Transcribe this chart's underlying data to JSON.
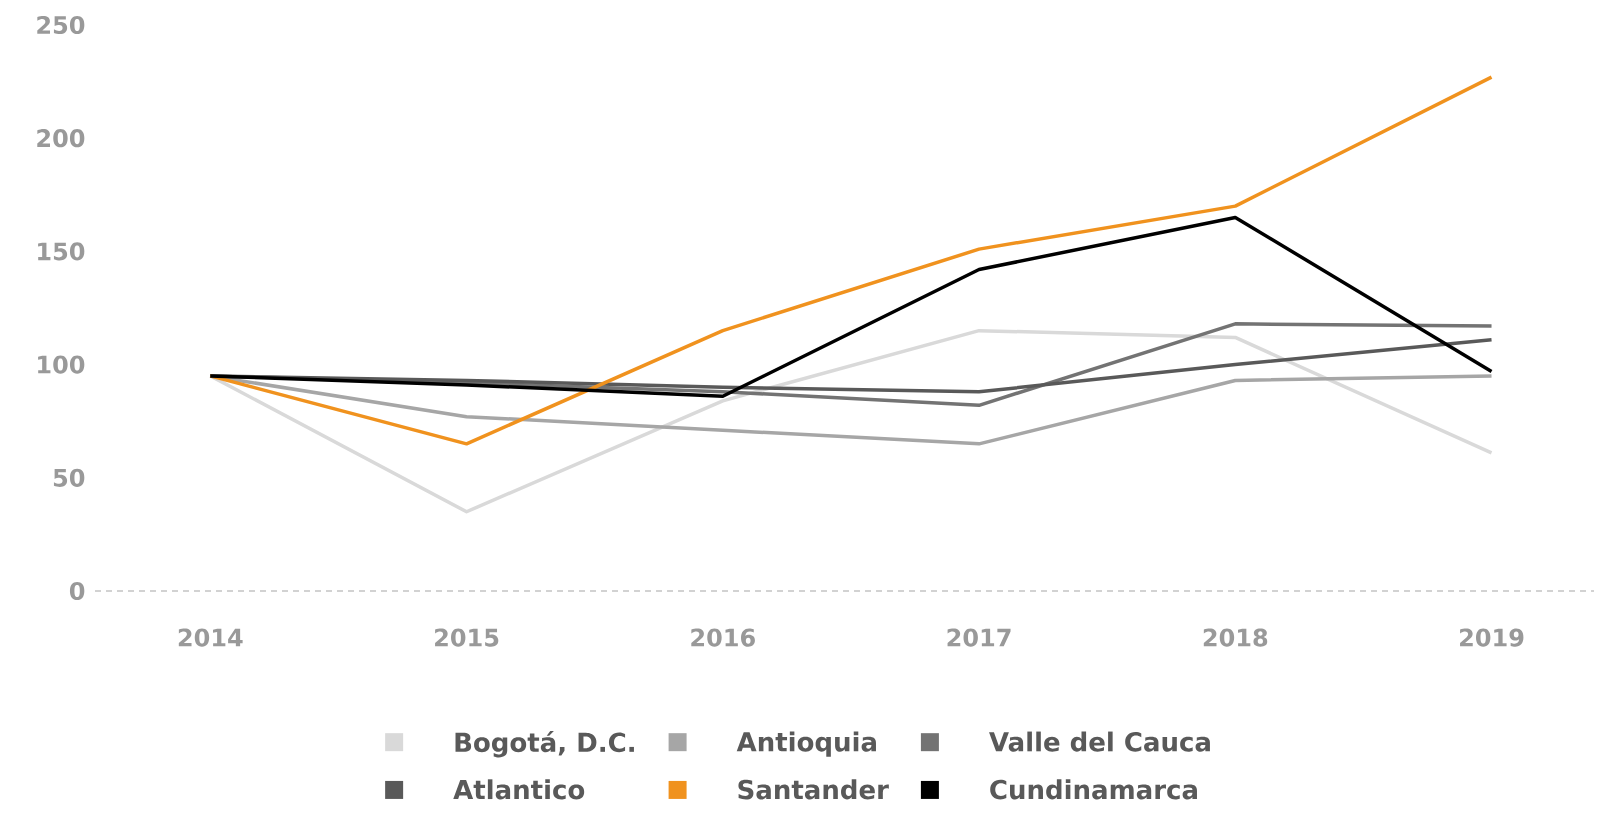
{
  "chart_data": {
    "type": "line",
    "categories": [
      "2014",
      "2015",
      "2016",
      "2017",
      "2018",
      "2019"
    ],
    "series": [
      {
        "name": "Bogotá, D.C.",
        "color": "#d9d9d9",
        "values": [
          95,
          35,
          84,
          115,
          112,
          61
        ]
      },
      {
        "name": "Antioquia",
        "color": "#a6a6a6",
        "values": [
          95,
          77,
          71,
          65,
          93,
          95
        ]
      },
      {
        "name": "Valle del Cauca",
        "color": "#737373",
        "values": [
          95,
          92,
          88,
          82,
          118,
          117
        ]
      },
      {
        "name": "Atlantico",
        "color": "#595959",
        "values": [
          95,
          93,
          90,
          88,
          100,
          111
        ]
      },
      {
        "name": "Santander",
        "color": "#f0921e",
        "values": [
          95,
          65,
          115,
          151,
          170,
          227
        ]
      },
      {
        "name": "Cundinamarca",
        "color": "#000000",
        "values": [
          95,
          91,
          86,
          142,
          165,
          97
        ]
      }
    ],
    "ylim": [
      0,
      250
    ],
    "yticks": [
      0,
      50,
      100,
      150,
      200,
      250
    ],
    "legend": "bottom",
    "marker": "none",
    "line_style": "solid"
  }
}
